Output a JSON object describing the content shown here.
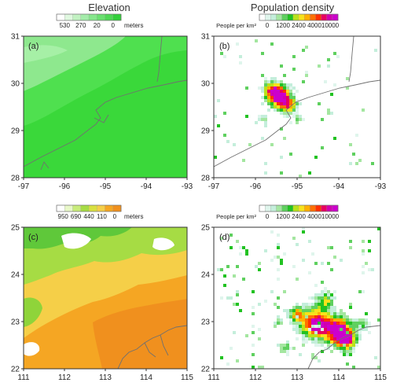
{
  "column_titles": [
    "Elevation",
    "Population density"
  ],
  "chart_data": [
    {
      "type": "heatmap",
      "variable": "elevation",
      "panel_label": "(a)",
      "xlim": [
        -97,
        -93
      ],
      "ylim": [
        28,
        31
      ],
      "xticks": [
        "-97",
        "-96",
        "-95",
        "-94",
        "-93"
      ],
      "yticks": [
        "31",
        "30",
        "29",
        "28"
      ],
      "colorbar": {
        "ticks": [
          "530",
          "270",
          "20",
          "0"
        ],
        "unit": "meters"
      },
      "colors": {
        "low": "#33d433",
        "high": "#a4f2a4"
      },
      "grid": false
    },
    {
      "type": "heatmap",
      "variable": "population density",
      "panel_label": "(b)",
      "xlim": [
        -97,
        -93
      ],
      "ylim": [
        28,
        31
      ],
      "xticks": [
        "-97",
        "-96",
        "-95",
        "-94",
        "-93"
      ],
      "yticks": [
        "31",
        "30",
        "29",
        "28"
      ],
      "colorbar": {
        "label": "People per km²",
        "ticks": [
          "0",
          "1200",
          "2400",
          "4000",
          "10000"
        ]
      },
      "colors": {
        "high": "#cc00cc",
        "mid": "#ff7a00",
        "low": "#e6f7ee"
      },
      "grid": false
    },
    {
      "type": "heatmap",
      "variable": "elevation",
      "panel_label": "(c)",
      "xlim": [
        111,
        115
      ],
      "ylim": [
        22,
        25
      ],
      "xticks": [
        "111",
        "112",
        "113",
        "114",
        "115"
      ],
      "yticks": [
        "25",
        "24",
        "23",
        "22"
      ],
      "colorbar": {
        "ticks": [
          "950",
          "690",
          "440",
          "110",
          "0"
        ],
        "unit": "meters"
      },
      "colors": {
        "low": "#f08c1c",
        "mid": "#f7d24a",
        "high": "#ffffff"
      },
      "grid": false
    },
    {
      "type": "heatmap",
      "variable": "population density",
      "panel_label": "(d)",
      "xlim": [
        111,
        115
      ],
      "ylim": [
        22,
        25
      ],
      "xticks": [
        "111",
        "112",
        "113",
        "114",
        "115"
      ],
      "yticks": [
        "25",
        "24",
        "23",
        "22"
      ],
      "colorbar": {
        "label": "People per km²",
        "ticks": [
          "0",
          "1200",
          "2400",
          "4000",
          "10000"
        ]
      },
      "colors": {
        "high": "#cc00cc",
        "mid": "#ff7a00",
        "low": "#e6f7ee"
      },
      "grid": false
    }
  ]
}
